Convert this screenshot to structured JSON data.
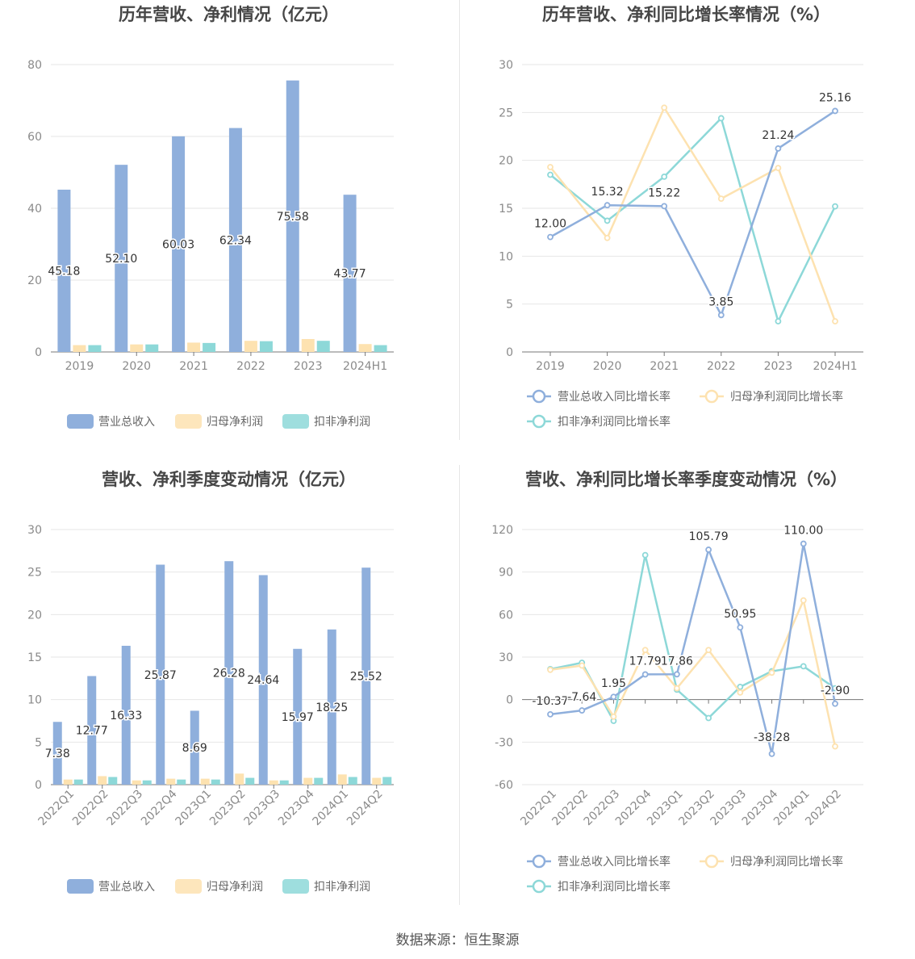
{
  "source_text": "数据来源：恒生聚源",
  "colors": {
    "revenue": "#8fafdc",
    "net_profit": "#fde2b0",
    "deducted": "#8dd8d8",
    "axis": "#777777",
    "grid": "#e6e6e6"
  },
  "chart_data": [
    {
      "type": "bar",
      "title": "历年营收、净利情况（亿元）",
      "categories": [
        "2019",
        "2020",
        "2021",
        "2022",
        "2023",
        "2024H1"
      ],
      "ylim": [
        0,
        80
      ],
      "yticks": [
        0,
        20,
        40,
        60,
        80
      ],
      "grid": true,
      "legend_position": "bottom",
      "series": [
        {
          "name": "营业总收入",
          "values": [
            45.18,
            52.1,
            60.03,
            62.34,
            75.58,
            43.77
          ],
          "labels": [
            "45.18",
            "52.10",
            "60.03",
            "62.34",
            "75.58",
            "43.77"
          ]
        },
        {
          "name": "归母净利润",
          "values": [
            1.9,
            2.1,
            2.6,
            3.1,
            3.6,
            2.2
          ]
        },
        {
          "name": "扣非净利润",
          "values": [
            1.9,
            2.1,
            2.5,
            3.0,
            3.1,
            1.9
          ]
        }
      ]
    },
    {
      "type": "line",
      "title": "历年营收、净利同比增长率情况（%）",
      "categories": [
        "2019",
        "2020",
        "2021",
        "2022",
        "2023",
        "2024H1"
      ],
      "ylim": [
        0,
        30
      ],
      "yticks": [
        0,
        5,
        10,
        15,
        20,
        25,
        30
      ],
      "grid": true,
      "legend_position": "bottom",
      "series": [
        {
          "name": "营业总收入同比增长率",
          "values": [
            12.0,
            15.32,
            15.22,
            3.85,
            21.24,
            25.16
          ],
          "labels": [
            "12.00",
            "15.32",
            "15.22",
            "3.85",
            "21.24",
            "25.16"
          ]
        },
        {
          "name": "归母净利润同比增长率",
          "values": [
            19.3,
            11.9,
            25.5,
            16.0,
            19.2,
            3.2
          ]
        },
        {
          "name": "扣非净利润同比增长率",
          "values": [
            18.5,
            13.7,
            18.3,
            24.4,
            3.2,
            15.2
          ]
        }
      ]
    },
    {
      "type": "bar",
      "title": "营收、净利季度变动情况（亿元）",
      "categories": [
        "2022Q1",
        "2022Q2",
        "2022Q3",
        "2022Q4",
        "2023Q1",
        "2023Q2",
        "2023Q3",
        "2023Q4",
        "2024Q1",
        "2024Q2"
      ],
      "ylim": [
        0,
        30
      ],
      "yticks": [
        0,
        5,
        10,
        15,
        20,
        25,
        30
      ],
      "grid": true,
      "legend_position": "bottom",
      "series": [
        {
          "name": "营业总收入",
          "values": [
            7.38,
            12.77,
            16.33,
            25.87,
            8.69,
            26.28,
            24.64,
            15.97,
            18.25,
            25.52
          ],
          "labels": [
            "7.38",
            "12.77",
            "16.33",
            "25.87",
            "8.69",
            "26.28",
            "24.64",
            "15.97",
            "18.25",
            "25.52"
          ]
        },
        {
          "name": "归母净利润",
          "values": [
            0.6,
            1.0,
            0.5,
            0.7,
            0.7,
            1.3,
            0.5,
            0.8,
            1.2,
            0.8
          ]
        },
        {
          "name": "扣非净利润",
          "values": [
            0.6,
            0.9,
            0.5,
            0.6,
            0.6,
            0.8,
            0.5,
            0.8,
            0.9,
            0.9
          ]
        }
      ]
    },
    {
      "type": "line",
      "title": "营收、净利同比增长率季度变动情况（%）",
      "categories": [
        "2022Q1",
        "2022Q2",
        "2022Q3",
        "2022Q4",
        "2023Q1",
        "2023Q2",
        "2023Q3",
        "2023Q4",
        "2024Q1",
        "2024Q2"
      ],
      "ylim": [
        -60,
        120
      ],
      "yticks": [
        -60,
        -30,
        0,
        30,
        60,
        90,
        120
      ],
      "grid": true,
      "legend_position": "bottom",
      "series": [
        {
          "name": "营业总收入同比增长率",
          "values": [
            -10.37,
            -7.64,
            1.95,
            17.79,
            17.86,
            105.79,
            50.95,
            -38.28,
            110.0,
            -2.9
          ],
          "labels": [
            "-10.37",
            "-7.64",
            "1.95",
            "17.79",
            "17.86",
            "105.79",
            "50.95",
            "-38.28",
            "110.00",
            "-2.90"
          ]
        },
        {
          "name": "归母净利润同比增长率",
          "values": [
            21.0,
            24.0,
            -12.0,
            35.0,
            8.0,
            35.0,
            5.0,
            19.0,
            70.0,
            -33.0
          ]
        },
        {
          "name": "扣非净利润同比增长率",
          "values": [
            21.5,
            26.0,
            -15.0,
            102.0,
            7.0,
            -13.0,
            9.0,
            20.0,
            23.5,
            8.0
          ]
        }
      ]
    }
  ]
}
